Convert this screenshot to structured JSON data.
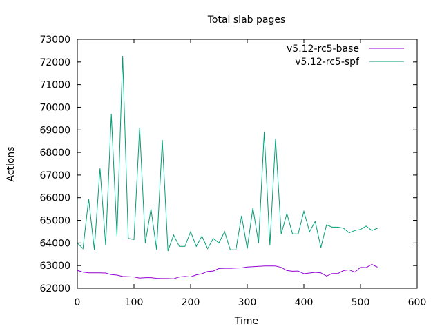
{
  "chart_data": {
    "type": "line",
    "title": "Total slab pages",
    "xlabel": "Time",
    "ylabel": "Actions",
    "xlim": [
      0,
      600
    ],
    "ylim": [
      62000,
      73000
    ],
    "xticks": [
      "0",
      "100",
      "200",
      "300",
      "400",
      "500",
      "600"
    ],
    "yticks": [
      "62000",
      "63000",
      "64000",
      "65000",
      "66000",
      "67000",
      "68000",
      "69000",
      "70000",
      "71000",
      "72000",
      "73000"
    ],
    "grid": false,
    "legend_position": "top-right",
    "series": [
      {
        "name": "v5.12-rc5-base",
        "color": "#9400d3",
        "points": [
          [
            0,
            62790
          ],
          [
            10,
            62710
          ],
          [
            20,
            62680
          ],
          [
            30,
            62680
          ],
          [
            40,
            62680
          ],
          [
            50,
            62670
          ],
          [
            60,
            62600
          ],
          [
            70,
            62580
          ],
          [
            80,
            62520
          ],
          [
            90,
            62510
          ],
          [
            100,
            62500
          ],
          [
            110,
            62450
          ],
          [
            120,
            62470
          ],
          [
            130,
            62470
          ],
          [
            140,
            62440
          ],
          [
            150,
            62430
          ],
          [
            160,
            62430
          ],
          [
            170,
            62420
          ],
          [
            180,
            62500
          ],
          [
            190,
            62520
          ],
          [
            200,
            62500
          ],
          [
            210,
            62590
          ],
          [
            220,
            62640
          ],
          [
            230,
            62740
          ],
          [
            240,
            62760
          ],
          [
            250,
            62870
          ],
          [
            260,
            62880
          ],
          [
            270,
            62880
          ],
          [
            280,
            62890
          ],
          [
            290,
            62900
          ],
          [
            300,
            62940
          ],
          [
            310,
            62950
          ],
          [
            320,
            62970
          ],
          [
            330,
            62980
          ],
          [
            340,
            62980
          ],
          [
            350,
            62980
          ],
          [
            360,
            62920
          ],
          [
            370,
            62780
          ],
          [
            380,
            62750
          ],
          [
            390,
            62760
          ],
          [
            400,
            62640
          ],
          [
            410,
            62670
          ],
          [
            420,
            62700
          ],
          [
            430,
            62680
          ],
          [
            440,
            62540
          ],
          [
            450,
            62650
          ],
          [
            460,
            62650
          ],
          [
            470,
            62780
          ],
          [
            480,
            62810
          ],
          [
            490,
            62710
          ],
          [
            500,
            62920
          ],
          [
            510,
            62910
          ],
          [
            520,
            63050
          ],
          [
            530,
            62930
          ]
        ]
      },
      {
        "name": "v5.12-rc5-spf",
        "color": "#009e73",
        "points": [
          [
            0,
            64000
          ],
          [
            10,
            63750
          ],
          [
            20,
            65950
          ],
          [
            30,
            63700
          ],
          [
            40,
            67300
          ],
          [
            50,
            63900
          ],
          [
            60,
            69700
          ],
          [
            70,
            64300
          ],
          [
            80,
            72270
          ],
          [
            90,
            64200
          ],
          [
            100,
            64150
          ],
          [
            110,
            69100
          ],
          [
            120,
            64000
          ],
          [
            130,
            65500
          ],
          [
            140,
            63700
          ],
          [
            150,
            68550
          ],
          [
            160,
            63650
          ],
          [
            170,
            64350
          ],
          [
            180,
            63850
          ],
          [
            190,
            63850
          ],
          [
            200,
            64500
          ],
          [
            210,
            63850
          ],
          [
            220,
            64300
          ],
          [
            230,
            63750
          ],
          [
            240,
            64200
          ],
          [
            250,
            64000
          ],
          [
            260,
            64500
          ],
          [
            270,
            63700
          ],
          [
            280,
            63700
          ],
          [
            290,
            65200
          ],
          [
            300,
            63750
          ],
          [
            310,
            65550
          ],
          [
            320,
            64000
          ],
          [
            330,
            68900
          ],
          [
            340,
            63900
          ],
          [
            350,
            68600
          ],
          [
            360,
            64400
          ],
          [
            370,
            65300
          ],
          [
            380,
            64400
          ],
          [
            390,
            64400
          ],
          [
            400,
            65400
          ],
          [
            410,
            64500
          ],
          [
            420,
            64950
          ],
          [
            430,
            63800
          ],
          [
            440,
            64800
          ],
          [
            450,
            64700
          ],
          [
            460,
            64700
          ],
          [
            470,
            64650
          ],
          [
            480,
            64450
          ],
          [
            490,
            64550
          ],
          [
            500,
            64600
          ],
          [
            510,
            64750
          ],
          [
            520,
            64550
          ],
          [
            530,
            64650
          ]
        ]
      }
    ]
  }
}
